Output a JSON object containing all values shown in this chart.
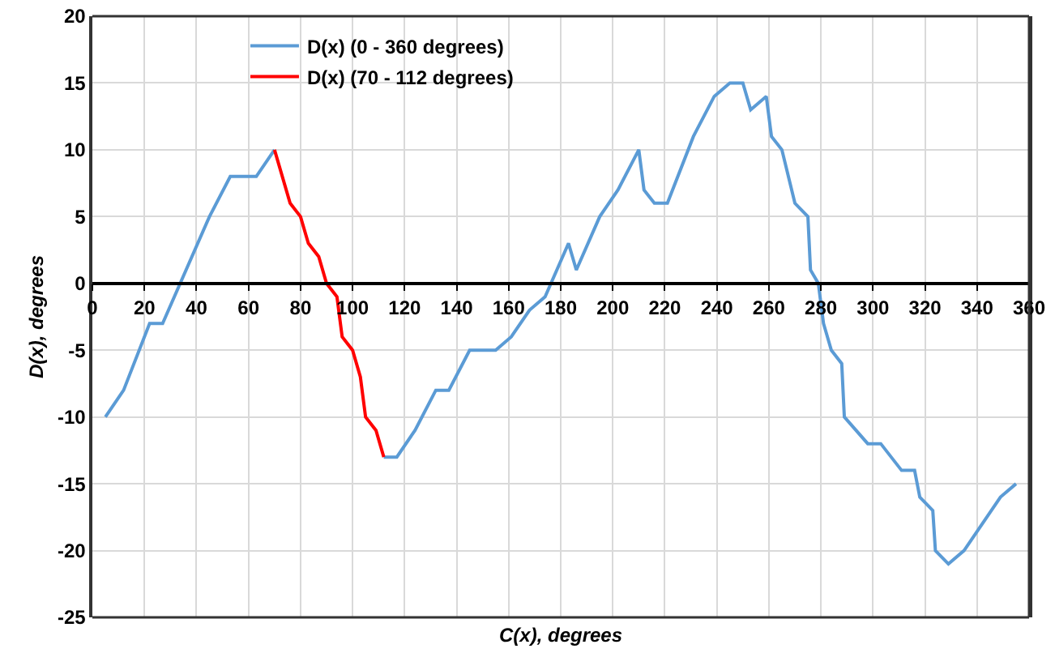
{
  "chart_data": {
    "type": "line",
    "xlabel": "C(x), degrees",
    "ylabel": "D(x), degrees",
    "xlim": [
      0,
      360
    ],
    "xticks": [
      0,
      20,
      40,
      60,
      80,
      100,
      120,
      140,
      160,
      180,
      200,
      220,
      240,
      260,
      280,
      300,
      320,
      340,
      360
    ],
    "ylim": [
      -25,
      20
    ],
    "yticks": [
      -25,
      -20,
      -15,
      -10,
      -5,
      0,
      5,
      10,
      15,
      20
    ],
    "grid": true,
    "legend": "top left",
    "marker": "none",
    "line_style": "solid",
    "series": [
      {
        "name": "D(x) (0 - 360 degrees)",
        "color": "#5b9bd5",
        "x": [
          5,
          12,
          22,
          27,
          45,
          53,
          63,
          70,
          90,
          112,
          117,
          124,
          132,
          137,
          145,
          155,
          161,
          168,
          174,
          183,
          186,
          195,
          202,
          210,
          212,
          216,
          221,
          231,
          239,
          245,
          250,
          253,
          259,
          261,
          265,
          270,
          275,
          276,
          279,
          281,
          284,
          288,
          289,
          298,
          303,
          311,
          316,
          318,
          323,
          324,
          329,
          335,
          349,
          355
        ],
        "values": [
          -10,
          -8,
          -3,
          -3,
          5,
          8,
          8,
          10,
          null,
          -13,
          -13,
          -11,
          -8,
          -8,
          -5,
          -5,
          -4,
          -2,
          -1,
          3,
          1,
          5,
          7,
          10,
          7,
          6,
          6,
          11,
          14,
          15,
          15,
          13,
          14,
          11,
          10,
          6,
          5,
          1,
          0,
          -3,
          -5,
          -6,
          -10,
          -12,
          -12,
          -14,
          -14,
          -16,
          -17,
          -20,
          -21,
          -20,
          -16,
          -15
        ]
      },
      {
        "name": "D(x) (70 - 112 degrees)",
        "color": "#ff0000",
        "x": [
          70,
          76,
          80,
          83,
          87,
          90,
          94,
          96,
          100,
          103,
          105,
          109,
          112
        ],
        "values": [
          10,
          6,
          5,
          3,
          2,
          0,
          -1,
          -4,
          -5,
          -7,
          -10,
          -11,
          -13
        ]
      }
    ]
  }
}
